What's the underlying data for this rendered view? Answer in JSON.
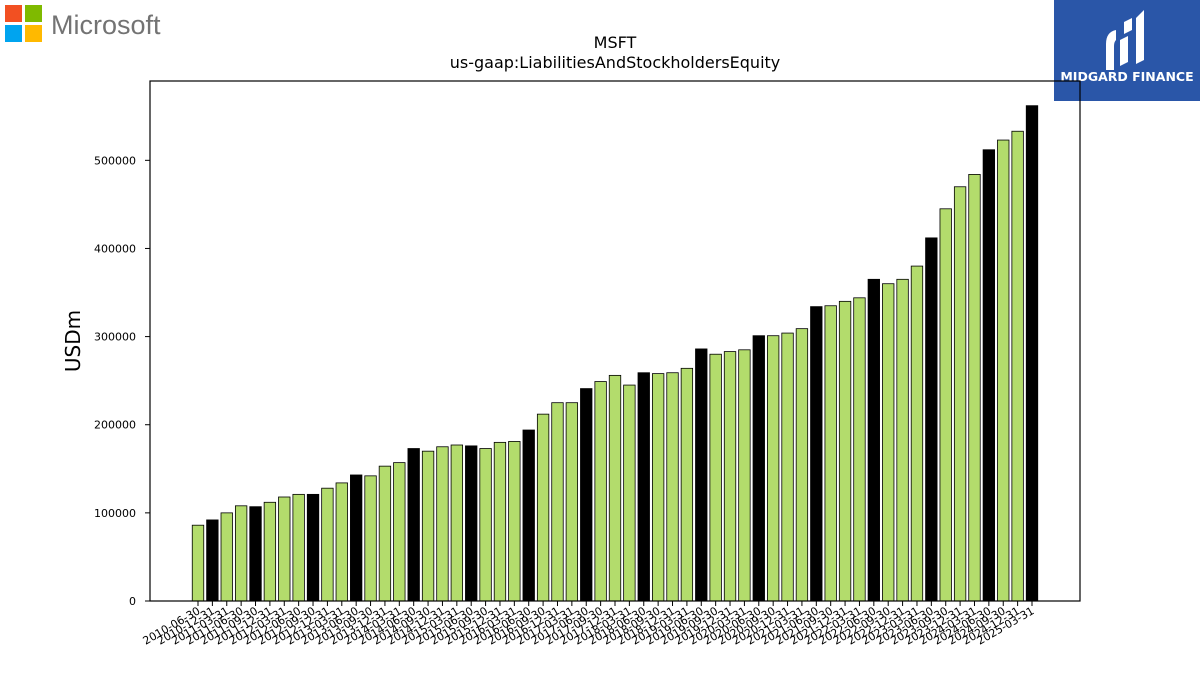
{
  "brand": {
    "left_logo_text": "Microsoft",
    "right_logo_text": "MIDGARD FINANCE"
  },
  "colors": {
    "bar_default": "#b3dc6c",
    "bar_highlight": "#000000",
    "bar_edge": "#000000",
    "ms_red": "#f25022",
    "ms_green": "#7fba00",
    "ms_blue": "#00a4ef",
    "ms_yellow": "#ffb900",
    "ms_text": "#737373",
    "midgard_bg": "#2a56a8"
  },
  "chart_data": {
    "type": "bar",
    "title": "MSFT",
    "subtitle": "us-gaap:LiabilitiesAndStockholdersEquity",
    "xlabel": "",
    "ylabel": "USDm",
    "ylim": [
      0,
      590000
    ],
    "yticks": [
      0,
      100000,
      200000,
      300000,
      400000,
      500000
    ],
    "grid": false,
    "legend": "none",
    "categories": [
      "2010-06-30",
      "2010-12-31",
      "2011-03-31",
      "2011-06-30",
      "2011-09-30",
      "2011-12-31",
      "2012-03-31",
      "2012-06-30",
      "2012-09-30",
      "2012-12-31",
      "2013-03-31",
      "2013-06-30",
      "2013-09-30",
      "2013-12-31",
      "2014-03-31",
      "2014-06-30",
      "2014-09-30",
      "2014-12-31",
      "2015-03-31",
      "2015-06-30",
      "2015-09-30",
      "2015-12-31",
      "2016-03-31",
      "2016-06-30",
      "2016-09-30",
      "2016-12-31",
      "2017-03-31",
      "2017-06-30",
      "2017-09-30",
      "2017-12-31",
      "2018-03-31",
      "2018-06-30",
      "2018-09-30",
      "2018-12-31",
      "2019-03-31",
      "2019-06-30",
      "2019-09-30",
      "2019-12-31",
      "2020-03-31",
      "2020-06-30",
      "2020-09-30",
      "2020-12-31",
      "2021-03-31",
      "2021-06-30",
      "2021-09-30",
      "2021-12-31",
      "2022-03-31",
      "2022-06-30",
      "2022-09-30",
      "2022-12-31",
      "2023-03-31",
      "2023-06-30",
      "2023-09-30",
      "2023-12-31",
      "2024-03-31",
      "2024-06-30",
      "2024-09-30",
      "2024-12-31",
      "2025-03-31"
    ],
    "values": [
      86000,
      92000,
      100000,
      108000,
      107000,
      112000,
      118000,
      121000,
      121000,
      128000,
      134000,
      143000,
      142000,
      153000,
      157000,
      173000,
      170000,
      175000,
      177000,
      176000,
      173000,
      180000,
      181000,
      194000,
      212000,
      225000,
      225000,
      241000,
      249000,
      256000,
      245000,
      259000,
      258000,
      259000,
      264000,
      286000,
      280000,
      283000,
      285000,
      301000,
      301000,
      304000,
      309000,
      334000,
      335000,
      340000,
      344000,
      365000,
      360000,
      365000,
      380000,
      412000,
      445000,
      470000,
      484000,
      512000,
      523000,
      533000,
      562000
    ],
    "highlighted_categories": [
      "2010-12-31",
      "2011-09-30",
      "2012-09-30",
      "2013-06-30",
      "2014-06-30",
      "2015-06-30",
      "2016-06-30",
      "2017-06-30",
      "2018-06-30",
      "2019-06-30",
      "2020-06-30",
      "2021-06-30",
      "2022-06-30",
      "2023-06-30",
      "2024-06-30",
      "2025-03-31"
    ]
  }
}
